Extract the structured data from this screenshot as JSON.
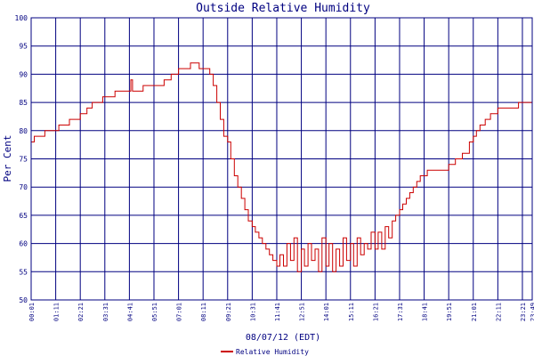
{
  "chart_data": {
    "type": "line",
    "title": "Outside Relative Humidity",
    "xlabel": "08/07/12 (EDT)",
    "ylabel": "Per Cent",
    "ylim": [
      50,
      100
    ],
    "yticks": [
      50,
      55,
      60,
      65,
      70,
      75,
      80,
      85,
      90,
      95,
      100
    ],
    "xlim": [
      "00:01",
      "23:49"
    ],
    "xticks": [
      "00:01",
      "01:11",
      "02:21",
      "03:31",
      "04:41",
      "05:51",
      "07:01",
      "08:11",
      "09:21",
      "10:31",
      "11:41",
      "12:51",
      "14:01",
      "15:11",
      "16:21",
      "17:31",
      "18:41",
      "19:51",
      "21:01",
      "22:11",
      "23:21",
      "23:49"
    ],
    "grid": true,
    "legend": "bottom-center",
    "colors": {
      "line": "#cc0000",
      "grid": "#000080",
      "text": "#000080"
    },
    "series": [
      {
        "name": "Relative Humidity",
        "points": [
          [
            "00:01",
            78
          ],
          [
            "00:10",
            79
          ],
          [
            "00:30",
            79
          ],
          [
            "00:40",
            80
          ],
          [
            "01:00",
            80
          ],
          [
            "01:11",
            80
          ],
          [
            "01:20",
            81
          ],
          [
            "01:40",
            81
          ],
          [
            "01:50",
            82
          ],
          [
            "02:10",
            82
          ],
          [
            "02:21",
            83
          ],
          [
            "02:40",
            84
          ],
          [
            "02:55",
            85
          ],
          [
            "03:10",
            85
          ],
          [
            "03:25",
            86
          ],
          [
            "03:50",
            86
          ],
          [
            "04:00",
            87
          ],
          [
            "04:30",
            87
          ],
          [
            "04:41",
            87
          ],
          [
            "04:45",
            89
          ],
          [
            "04:50",
            87
          ],
          [
            "05:20",
            88
          ],
          [
            "05:51",
            88
          ],
          [
            "06:20",
            89
          ],
          [
            "06:40",
            90
          ],
          [
            "07:01",
            91
          ],
          [
            "07:20",
            91
          ],
          [
            "07:35",
            92
          ],
          [
            "07:50",
            92
          ],
          [
            "08:00",
            91
          ],
          [
            "08:11",
            91
          ],
          [
            "08:20",
            91
          ],
          [
            "08:30",
            90
          ],
          [
            "08:40",
            88
          ],
          [
            "08:50",
            85
          ],
          [
            "09:00",
            82
          ],
          [
            "09:10",
            79
          ],
          [
            "09:21",
            78
          ],
          [
            "09:30",
            75
          ],
          [
            "09:40",
            72
          ],
          [
            "09:50",
            70
          ],
          [
            "10:00",
            68
          ],
          [
            "10:10",
            66
          ],
          [
            "10:20",
            64
          ],
          [
            "10:31",
            63
          ],
          [
            "10:40",
            62
          ],
          [
            "10:50",
            61
          ],
          [
            "11:00",
            60
          ],
          [
            "11:10",
            59
          ],
          [
            "11:20",
            58
          ],
          [
            "11:30",
            57
          ],
          [
            "11:41",
            56
          ],
          [
            "11:50",
            58
          ],
          [
            "12:00",
            56
          ],
          [
            "12:10",
            60
          ],
          [
            "12:20",
            57
          ],
          [
            "12:30",
            61
          ],
          [
            "12:40",
            55
          ],
          [
            "12:51",
            59
          ],
          [
            "13:00",
            56
          ],
          [
            "13:10",
            60
          ],
          [
            "13:20",
            57
          ],
          [
            "13:30",
            59
          ],
          [
            "13:40",
            55
          ],
          [
            "13:50",
            61
          ],
          [
            "14:01",
            56
          ],
          [
            "14:10",
            60
          ],
          [
            "14:20",
            55
          ],
          [
            "14:30",
            59
          ],
          [
            "14:40",
            56
          ],
          [
            "14:50",
            61
          ],
          [
            "15:00",
            57
          ],
          [
            "15:11",
            60
          ],
          [
            "15:20",
            56
          ],
          [
            "15:30",
            61
          ],
          [
            "15:40",
            58
          ],
          [
            "15:50",
            60
          ],
          [
            "16:00",
            59
          ],
          [
            "16:10",
            62
          ],
          [
            "16:21",
            59
          ],
          [
            "16:30",
            62
          ],
          [
            "16:40",
            59
          ],
          [
            "16:50",
            63
          ],
          [
            "17:00",
            61
          ],
          [
            "17:10",
            64
          ],
          [
            "17:20",
            65
          ],
          [
            "17:31",
            66
          ],
          [
            "17:40",
            67
          ],
          [
            "17:50",
            68
          ],
          [
            "18:00",
            69
          ],
          [
            "18:10",
            70
          ],
          [
            "18:20",
            71
          ],
          [
            "18:30",
            72
          ],
          [
            "18:41",
            72
          ],
          [
            "18:50",
            73
          ],
          [
            "19:10",
            73
          ],
          [
            "19:30",
            73
          ],
          [
            "19:51",
            74
          ],
          [
            "20:10",
            75
          ],
          [
            "20:30",
            76
          ],
          [
            "20:50",
            78
          ],
          [
            "21:01",
            79
          ],
          [
            "21:10",
            80
          ],
          [
            "21:20",
            81
          ],
          [
            "21:35",
            82
          ],
          [
            "21:50",
            83
          ],
          [
            "22:11",
            84
          ],
          [
            "22:30",
            84
          ],
          [
            "22:50",
            84
          ],
          [
            "23:10",
            85
          ],
          [
            "23:21",
            85
          ],
          [
            "23:40",
            85
          ],
          [
            "23:49",
            86
          ]
        ]
      }
    ]
  }
}
